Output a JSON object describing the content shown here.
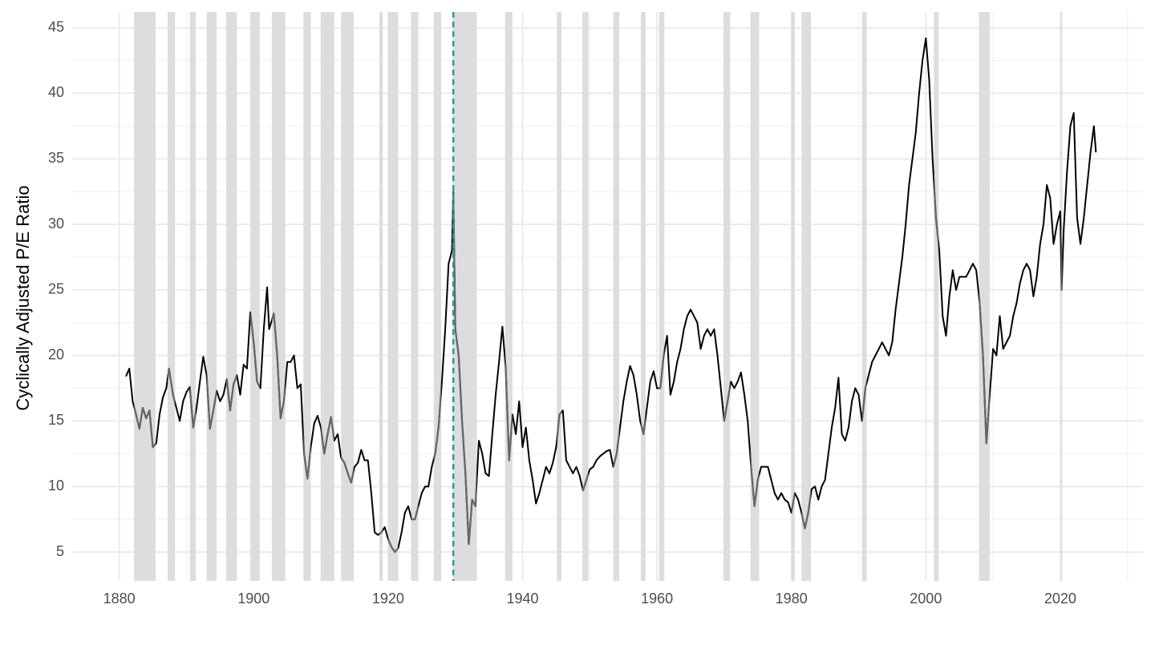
{
  "chart_data": {
    "type": "line",
    "y_label": "Cyclically Adjusted P/E Ratio",
    "xlim": [
      1873,
      2032.3
    ],
    "ylim": [
      2.8,
      46.2
    ],
    "xticks": [
      1880,
      1900,
      1920,
      1940,
      1960,
      1980,
      2000,
      2020
    ],
    "x_minor_ticks": [
      1890,
      1910,
      1930,
      1950,
      1970,
      1990,
      2010,
      2030
    ],
    "yticks": [
      5,
      10,
      15,
      20,
      25,
      30,
      35,
      40,
      45
    ],
    "y_minor_ticks": [
      7.5,
      12.5,
      17.5,
      22.5,
      27.5,
      32.5,
      37.5,
      42.5
    ],
    "grid": true,
    "color": "#000000",
    "recession_line_color": "#666666",
    "recession_color": "#dddddd",
    "marker_x": 1929.7,
    "marker_color": "#2a9a9a",
    "recessions": [
      [
        1882.2,
        1885.4
      ],
      [
        1887.2,
        1888.3
      ],
      [
        1890.5,
        1891.4
      ],
      [
        1893.0,
        1894.5
      ],
      [
        1895.9,
        1897.5
      ],
      [
        1899.5,
        1900.9
      ],
      [
        1902.7,
        1904.7
      ],
      [
        1907.4,
        1908.5
      ],
      [
        1910.0,
        1912.0
      ],
      [
        1913.0,
        1914.9
      ],
      [
        1918.7,
        1919.2
      ],
      [
        1920.0,
        1921.5
      ],
      [
        1923.4,
        1924.5
      ],
      [
        1926.8,
        1927.9
      ],
      [
        1929.6,
        1933.2
      ],
      [
        1937.4,
        1938.5
      ],
      [
        1945.1,
        1945.8
      ],
      [
        1948.9,
        1949.8
      ],
      [
        1953.5,
        1954.4
      ],
      [
        1957.6,
        1958.3
      ],
      [
        1960.3,
        1961.1
      ],
      [
        1969.9,
        1970.9
      ],
      [
        1973.9,
        1975.2
      ],
      [
        1980.0,
        1980.5
      ],
      [
        1981.5,
        1982.9
      ],
      [
        1990.5,
        1991.2
      ],
      [
        2001.2,
        2001.9
      ],
      [
        2007.9,
        2009.5
      ],
      [
        2020.1,
        2020.3
      ]
    ],
    "x": [
      1881.0,
      1881.5,
      1882,
      1882.5,
      1883,
      1883.5,
      1884,
      1884.5,
      1885,
      1885.5,
      1886,
      1886.5,
      1887,
      1887.4,
      1888,
      1888.5,
      1889,
      1889.5,
      1890,
      1890.5,
      1891,
      1891.5,
      1892,
      1892.5,
      1893,
      1893.5,
      1894,
      1894.5,
      1895,
      1895.5,
      1896,
      1896.5,
      1897,
      1897.5,
      1898,
      1898.5,
      1899,
      1899.5,
      1900,
      1900.5,
      1901,
      1901.5,
      1902,
      1902.3,
      1903,
      1903.5,
      1904,
      1904.5,
      1905,
      1905.5,
      1906,
      1906.5,
      1907,
      1907.5,
      1908,
      1908.5,
      1909,
      1909.5,
      1910,
      1910.5,
      1911,
      1911.5,
      1912,
      1912.5,
      1913,
      1913.5,
      1914,
      1914.5,
      1915,
      1915.5,
      1916,
      1916.5,
      1917,
      1917.5,
      1918,
      1918.5,
      1919,
      1919.5,
      1920,
      1920.5,
      1921,
      1921.5,
      1922,
      1922.5,
      1923,
      1923.5,
      1924,
      1924.5,
      1925,
      1925.5,
      1926,
      1926.5,
      1927,
      1927.5,
      1928,
      1928.5,
      1929,
      1929.5,
      1929.7,
      1930,
      1930.5,
      1931,
      1931.5,
      1932,
      1932.5,
      1933,
      1933.5,
      1934,
      1934.5,
      1935,
      1935.5,
      1936,
      1936.5,
      1937,
      1937.5,
      1938,
      1938.5,
      1939,
      1939.5,
      1940,
      1940.5,
      1941,
      1941.5,
      1942,
      1942.5,
      1943,
      1943.5,
      1944,
      1944.5,
      1945,
      1945.5,
      1946,
      1946.5,
      1947,
      1947.5,
      1948,
      1948.5,
      1949,
      1949.5,
      1950,
      1950.5,
      1951,
      1951.5,
      1952,
      1952.5,
      1953,
      1953.5,
      1954,
      1954.5,
      1955,
      1955.5,
      1956,
      1956.5,
      1957,
      1957.5,
      1958,
      1958.5,
      1959,
      1959.5,
      1960,
      1960.5,
      1961,
      1961.5,
      1962,
      1962.5,
      1963,
      1963.5,
      1964,
      1964.5,
      1965,
      1965.5,
      1966,
      1966.5,
      1967,
      1967.5,
      1968,
      1968.5,
      1969,
      1969.5,
      1970,
      1970.5,
      1971,
      1971.5,
      1972,
      1972.5,
      1973,
      1973.5,
      1974,
      1974.5,
      1975,
      1975.5,
      1976,
      1976.5,
      1977,
      1977.5,
      1978,
      1978.5,
      1979,
      1979.5,
      1980,
      1980.5,
      1981,
      1981.5,
      1982,
      1982.5,
      1983,
      1983.5,
      1984,
      1984.5,
      1985,
      1985.5,
      1986,
      1986.5,
      1987,
      1987.5,
      1988,
      1988.5,
      1989,
      1989.5,
      1990,
      1990.5,
      1991,
      1991.5,
      1992,
      1992.5,
      1993,
      1993.5,
      1994,
      1994.5,
      1995,
      1995.5,
      1996,
      1996.5,
      1997,
      1997.5,
      1998,
      1998.5,
      1999,
      1999.5,
      2000,
      2000.5,
      2001,
      2001.5,
      2002,
      2002.5,
      2003,
      2003.5,
      2004,
      2004.5,
      2005,
      2005.5,
      2006,
      2006.5,
      2007,
      2007.5,
      2008,
      2008.5,
      2009,
      2009.5,
      2010,
      2010.5,
      2011,
      2011.5,
      2012,
      2012.5,
      2013,
      2013.5,
      2014,
      2014.5,
      2015,
      2015.5,
      2016,
      2016.5,
      2017,
      2017.5,
      2018,
      2018.5,
      2019,
      2019.5,
      2020,
      2020.2,
      2020.5,
      2021,
      2021.5,
      2022,
      2022.5,
      2023,
      2023.5,
      2024,
      2024.5,
      2025,
      2025.3
    ],
    "values": [
      18.4,
      19.0,
      16.5,
      15.5,
      14.4,
      16.0,
      15.2,
      15.8,
      13.0,
      13.3,
      15.5,
      16.8,
      17.5,
      19.0,
      17.0,
      16.0,
      15.0,
      16.5,
      17.2,
      17.6,
      14.5,
      16.0,
      18.0,
      19.9,
      18.5,
      14.4,
      15.8,
      17.3,
      16.5,
      17.0,
      18.2,
      15.8,
      17.8,
      18.5,
      17.0,
      19.3,
      19.0,
      23.3,
      21.0,
      18.0,
      17.5,
      22.0,
      25.2,
      22.0,
      23.2,
      20.0,
      15.2,
      16.5,
      19.5,
      19.5,
      20.0,
      17.5,
      17.8,
      12.5,
      10.6,
      13.0,
      14.8,
      15.4,
      14.5,
      12.5,
      14.0,
      15.3,
      13.5,
      14.0,
      12.2,
      11.8,
      11.0,
      10.3,
      11.5,
      11.8,
      12.8,
      12.0,
      12.0,
      9.5,
      6.5,
      6.3,
      6.5,
      6.9,
      6.0,
      5.4,
      5.0,
      5.3,
      6.5,
      8.0,
      8.5,
      7.5,
      7.5,
      8.5,
      9.5,
      10.0,
      10.0,
      11.5,
      12.5,
      14.5,
      18.0,
      22.0,
      27.0,
      28.0,
      32.5,
      22.0,
      20.0,
      15.0,
      11.0,
      5.6,
      9.0,
      8.5,
      13.5,
      12.5,
      11.0,
      10.8,
      14.0,
      17.0,
      19.5,
      22.2,
      19.0,
      12.0,
      15.5,
      14.0,
      16.5,
      13.0,
      14.5,
      12.0,
      10.5,
      8.7,
      9.5,
      10.5,
      11.5,
      11.0,
      11.8,
      13.0,
      15.5,
      15.8,
      12.0,
      11.5,
      11.0,
      11.5,
      10.8,
      9.7,
      10.5,
      11.3,
      11.5,
      12.0,
      12.3,
      12.5,
      12.7,
      12.8,
      11.5,
      12.5,
      14.5,
      16.5,
      18.0,
      19.2,
      18.5,
      17.0,
      15.0,
      14.0,
      16.0,
      18.0,
      18.8,
      17.5,
      17.5,
      20.0,
      21.5,
      17.0,
      18.0,
      19.5,
      20.5,
      22.0,
      23.0,
      23.5,
      23.0,
      22.5,
      20.5,
      21.5,
      22.0,
      21.5,
      22.0,
      20.0,
      17.5,
      15.0,
      16.5,
      18.0,
      17.5,
      18.0,
      18.7,
      17.0,
      15.0,
      11.5,
      8.5,
      10.5,
      11.5,
      11.5,
      11.5,
      10.5,
      9.5,
      9.0,
      9.5,
      9.0,
      8.8,
      8.0,
      9.5,
      9.0,
      8.0,
      6.8,
      8.0,
      9.8,
      10.0,
      9.0,
      10.0,
      10.5,
      12.5,
      14.5,
      16.0,
      18.3,
      14.0,
      13.5,
      14.5,
      16.5,
      17.5,
      17.0,
      15.0,
      17.5,
      18.5,
      19.5,
      20.0,
      20.5,
      21.0,
      20.5,
      20.0,
      21.0,
      23.5,
      25.5,
      27.5,
      30.0,
      33.0,
      35.0,
      37.0,
      40.0,
      42.5,
      44.2,
      41.0,
      35.0,
      30.5,
      28.0,
      23.0,
      21.5,
      24.5,
      26.5,
      25.0,
      26.0,
      26.0,
      26.0,
      26.5,
      27.0,
      26.5,
      24.0,
      20.0,
      13.3,
      17.0,
      20.5,
      20.0,
      23.0,
      20.5,
      21.0,
      21.5,
      23.0,
      24.0,
      25.5,
      26.5,
      27.0,
      26.5,
      24.5,
      26.0,
      28.5,
      30.0,
      33.0,
      32.0,
      28.5,
      30.0,
      31.0,
      25.0,
      29.5,
      34.0,
      37.5,
      38.5,
      30.5,
      28.5,
      30.5,
      33.0,
      35.5,
      37.5,
      35.5
    ]
  }
}
